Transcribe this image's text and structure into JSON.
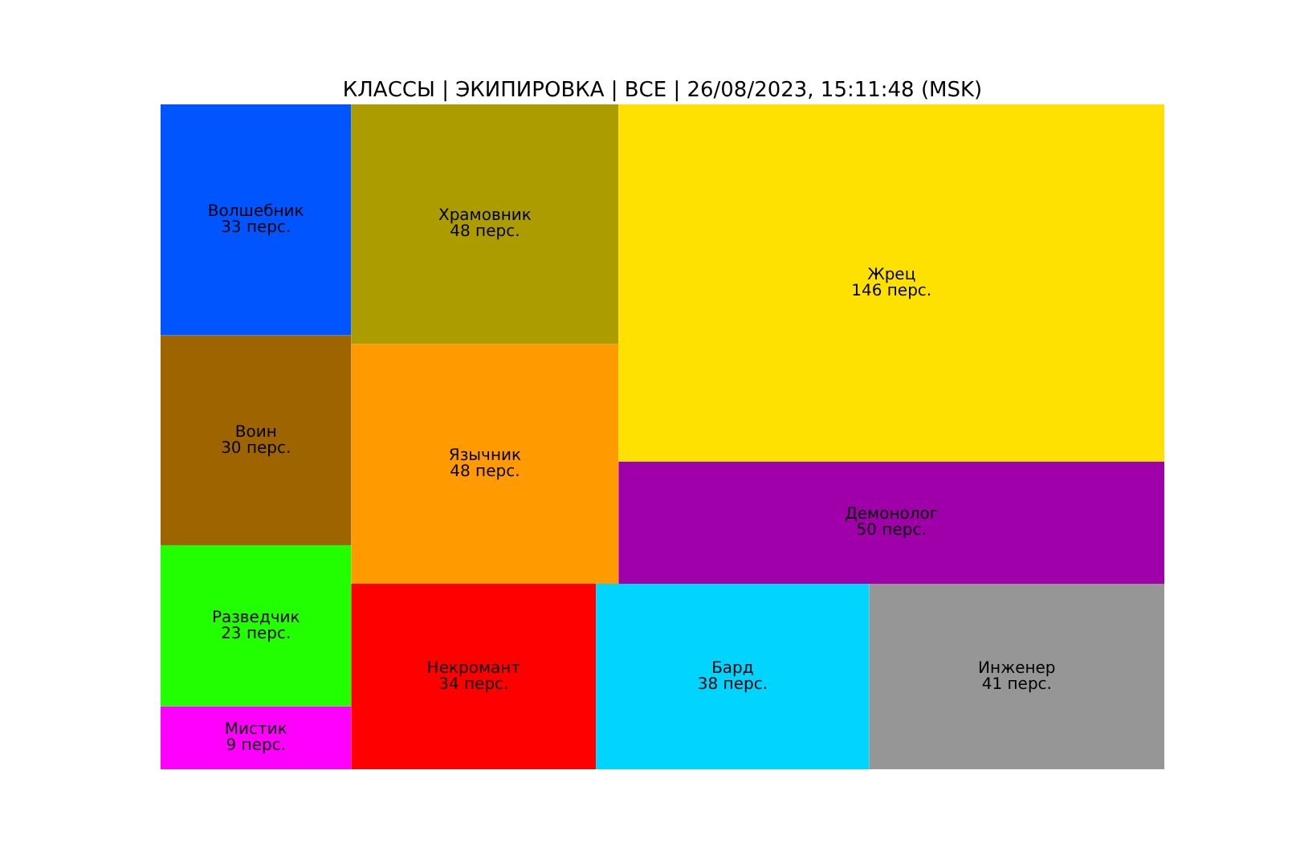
{
  "chart_data": {
    "type": "other",
    "title": "КЛАССЫ | ЭКИПИРОВКА | ВСЕ | 26/08/2023, 15:11:48 (MSK)",
    "categories": [
      "Мистик",
      "Разведчик",
      "Воин",
      "Волшебник",
      "Некромант",
      "Бард",
      "Инженер",
      "Язычник",
      "Храмовник",
      "Демонолог",
      "Жрец"
    ],
    "values": [
      9,
      23,
      30,
      33,
      34,
      38,
      41,
      48,
      48,
      50,
      146
    ],
    "value_labels": [
      "9 перс.",
      "23 перс.",
      "30 перс.",
      "33 перс.",
      "34 перс.",
      "38 перс.",
      "41 перс.",
      "48 перс.",
      "48 перс.",
      "50 перс.",
      "146 перс."
    ],
    "colors": [
      "#ff00ff",
      "#22ff00",
      "#9e6400",
      "#0055ff",
      "#ff0000",
      "#00d4ff",
      "#969696",
      "#ff9a00",
      "#ac9c00",
      "#a000aa",
      "#ffe100"
    ]
  }
}
